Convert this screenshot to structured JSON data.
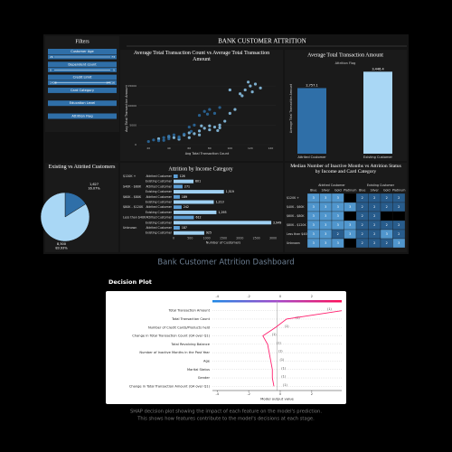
{
  "dashboard_title": "BANK CUSTOMER ATTRITION",
  "filters": {
    "title": "Filters",
    "items": [
      {
        "label": "Customer Age",
        "min": 26,
        "max": 73
      },
      {
        "label": "Dependent count",
        "min": 0,
        "max": 5
      },
      {
        "label": "Credit Limit",
        "min": 1438,
        "max": 34516
      },
      {
        "label": "Card Category"
      },
      {
        "label": "Education Level"
      },
      {
        "label": "Attrition Flag"
      }
    ]
  },
  "footer": "Bank Customer Attrition Dashboard",
  "section_title": "Decision Plot",
  "caption": [
    "SHAP decision plot showing the impact of each feature on the model's prediction.",
    "This shows how features contribute to the model's decisions at each stage."
  ],
  "chart_data": [
    {
      "type": "scatter",
      "title": "Average Total Transaction Count vs Average Total Transaction Amount",
      "x_label": "Avg Total Transaction Count",
      "y_label": "Avg Total Transaction Amount",
      "xlim": [
        10,
        145
      ],
      "xticks": [
        20,
        40,
        60,
        80,
        100,
        120,
        140
      ],
      "ylim": [
        0,
        18500
      ],
      "yticks": [
        0,
        5000,
        10000,
        15000
      ],
      "series": [
        {
          "color": "#8ec9ee",
          "x": [
            30,
            40,
            45,
            55,
            60,
            65,
            70,
            75,
            80,
            85,
            90,
            95,
            100,
            105,
            110,
            115,
            120,
            125,
            130,
            70,
            60,
            50,
            80,
            90,
            100,
            112,
            118,
            122,
            72,
            88
          ],
          "y": [
            1500,
            2000,
            1800,
            2500,
            3000,
            2800,
            3500,
            4200,
            4800,
            4500,
            5000,
            6000,
            8000,
            9000,
            13000,
            14000,
            15000,
            15500,
            14500,
            2500,
            1800,
            1400,
            3800,
            4300,
            14000,
            12500,
            16000,
            13500,
            4800,
            3600
          ]
        },
        {
          "color": "#2d6da3",
          "x": [
            20,
            25,
            30,
            35,
            40,
            45,
            50,
            55,
            60,
            65,
            70,
            75,
            80,
            85,
            40,
            35,
            50,
            90,
            62,
            78
          ],
          "y": [
            800,
            1200,
            1000,
            1800,
            2200,
            2500,
            2000,
            2700,
            4500,
            5000,
            7500,
            8500,
            9000,
            8000,
            1500,
            1100,
            1700,
            9500,
            3400,
            7800
          ]
        }
      ]
    },
    {
      "type": "bar",
      "title": "Average Total Transaction Amount",
      "legend_title": "Attrition Flag",
      "y_label": "Average Total Transaction Amount",
      "ylim": [
        0,
        3800
      ],
      "categories": [
        "Attrited Customer",
        "Existing Customer"
      ],
      "values": [
        2757.1,
        3446.4
      ],
      "value_labels": [
        "2,757.1",
        "3,446.4"
      ],
      "colors": [
        "#2f6fa8",
        "#a9d7f5"
      ]
    },
    {
      "type": "pie",
      "title": "Existing vs Attrited Customers",
      "values": [
        1627,
        8500
      ],
      "value_labels": [
        "1,627",
        "8,500"
      ],
      "percent_labels": [
        "16.07%",
        "83.93%"
      ],
      "colors": [
        "#2f6fa8",
        "#a9d7f5"
      ]
    },
    {
      "type": "hbar",
      "title": "Attrition by Income Category",
      "x_label": "Number of Customers",
      "categories": [
        "$120K +",
        "$40K - $60K",
        "$60K - $80K",
        "$80K - $120K",
        "Less than $40K",
        "Unknown"
      ],
      "xlim": [
        0,
        3000
      ],
      "xticks": [
        0,
        500,
        1000,
        1500,
        2000,
        2500,
        3000
      ],
      "series": [
        {
          "name": "Attrited Customer",
          "color": "#5d9fd6",
          "values": [
            126,
            271,
            189,
            242,
            612,
            187
          ],
          "value_labels": [
            "126",
            "271",
            "189",
            "242",
            "612",
            "187"
          ]
        },
        {
          "name": "Existing Customer",
          "color": "#9fd0f2",
          "values": [
            601,
            1519,
            1213,
            1293,
            2949,
            925
          ],
          "value_labels": [
            "601",
            "1,519",
            "1,213",
            "1,293",
            "2,949",
            "925"
          ]
        }
      ]
    },
    {
      "type": "heatmap",
      "title": "Median Number of Inactive Months vs Attrition Status by Income and Card Category",
      "groups": [
        "Attrited Customer",
        "Existing Customer"
      ],
      "columns": [
        "Blue",
        "Silver",
        "Gold",
        "Platinum",
        "Blue",
        "Silver",
        "Gold",
        "Platinum"
      ],
      "rows": [
        "$120K +",
        "$40K - $60K",
        "$60K - $80K",
        "$80K - $120K",
        "Less than $40K",
        "Unknown"
      ],
      "values": [
        [
          3,
          3,
          3,
          null,
          2,
          2,
          2,
          2
        ],
        [
          3,
          3,
          3,
          3,
          2,
          2,
          2,
          2
        ],
        [
          3,
          3,
          3,
          null,
          2,
          2,
          null,
          null
        ],
        [
          3,
          3,
          3,
          3,
          2,
          2,
          2,
          2
        ],
        [
          3,
          3,
          2,
          3,
          2,
          2,
          3,
          2
        ],
        [
          3,
          3,
          3,
          null,
          2,
          2,
          2,
          3
        ]
      ]
    },
    {
      "type": "decision",
      "x_label": "Model output value",
      "xlim": [
        -4.3,
        3.9
      ],
      "xticks": [
        -4,
        -2,
        0,
        2
      ],
      "features": [
        "Total Transaction Amount",
        "Total Transaction Count",
        "Number of Credit Cards/Products held",
        "Change in Total Transaction Count (Q4 over Q1)",
        "Total Revolving Balance",
        "Number of Inactive Months in the Past Year",
        "Age",
        "Marital Status",
        "Gender",
        "Change in Total Transaction Amount (Q4 over Q1)"
      ],
      "feature_values": [
        "(1)",
        "(1)",
        "(1)",
        "(1)",
        "(1)",
        "(1)",
        "(1)",
        "(1)",
        "(1)",
        "(1)"
      ],
      "values": [
        3.9,
        0.4,
        -0.3,
        -1.1,
        -0.8,
        -0.7,
        -0.6,
        -0.5,
        -0.5,
        -0.4
      ],
      "color": "#ff1f6e"
    }
  ]
}
